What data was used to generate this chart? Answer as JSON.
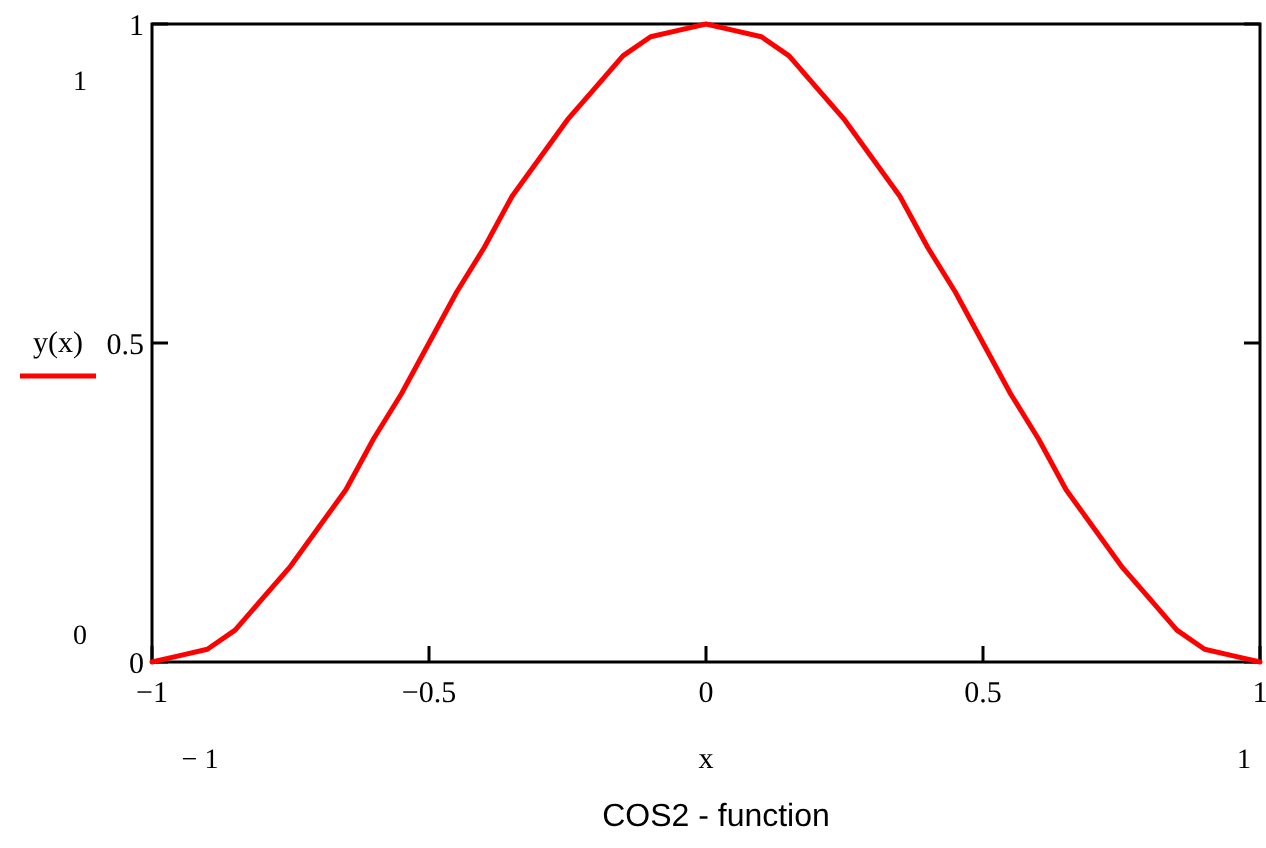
{
  "chart_data": {
    "type": "line",
    "title": "COS2 - function",
    "xlabel": "x",
    "x": [
      -1,
      -0.95,
      -0.9,
      -0.85,
      -0.8,
      -0.75,
      -0.7,
      -0.65,
      -0.6,
      -0.55,
      -0.5,
      -0.45,
      -0.4,
      -0.35,
      -0.3,
      -0.25,
      -0.2,
      -0.15,
      -0.1,
      -0.05,
      0,
      0.05,
      0.1,
      0.15,
      0.2,
      0.25,
      0.3,
      0.35,
      0.4,
      0.45,
      0.5,
      0.55,
      0.6,
      0.65,
      0.7,
      0.75,
      0.8,
      0.85,
      0.9,
      0.95,
      1
    ],
    "series": [
      {
        "name": "y(x)",
        "color": "#ff0000",
        "values": [
          0,
          0.01,
          0.02,
          0.05,
          0.1,
          0.15,
          0.21,
          0.27,
          0.35,
          0.42,
          0.5,
          0.58,
          0.65,
          0.73,
          0.79,
          0.85,
          0.9,
          0.95,
          0.98,
          0.99,
          1,
          0.99,
          0.98,
          0.95,
          0.9,
          0.85,
          0.79,
          0.73,
          0.65,
          0.58,
          0.5,
          0.42,
          0.35,
          0.27,
          0.21,
          0.15,
          0.1,
          0.05,
          0.02,
          0.01,
          0
        ]
      }
    ],
    "xlim": [
      -1,
      1
    ],
    "ylim": [
      0,
      1
    ],
    "xticks": [
      {
        "value": -1,
        "label": "−1"
      },
      {
        "value": -0.5,
        "label": "−0.5"
      },
      0,
      0.5,
      1
    ],
    "yticks": [
      0,
      0.5,
      1
    ],
    "legend": "left",
    "grid": false,
    "marker": "none",
    "line_style": "solid",
    "annotations": [
      "1",
      "0",
      "− 1",
      "1"
    ]
  }
}
